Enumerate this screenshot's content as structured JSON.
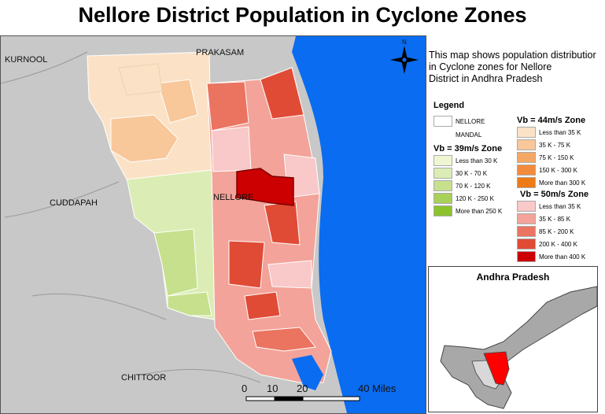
{
  "title": "Nellore District Population in Cyclone Zones",
  "description": [
    "This map shows population distributior",
    "in Cyclone zones for Nellore",
    "District in Andhra Pradesh"
  ],
  "map_labels": {
    "kurnool": "KURNOOL",
    "prakasam": "PRAKASAM",
    "cuddapah": "CUDDAPAH",
    "nellore": "NELLORE",
    "chittoor": "CHITTOOR",
    "north_arrow": "N"
  },
  "scale_bar": {
    "ticks": [
      "0",
      "10",
      "20",
      "40 Miles"
    ]
  },
  "legend": {
    "heading": "Legend",
    "boundary_items": [
      "NELLORE",
      "MANDAL"
    ],
    "zones": [
      {
        "title": "Vb = 39m/s Zone",
        "items": [
          {
            "label": "Less than 30 K",
            "color": "#eef7d2"
          },
          {
            "label": "30 K - 70 K",
            "color": "#dbedb4"
          },
          {
            "label": "70 K - 120 K",
            "color": "#c6e08d"
          },
          {
            "label": "120 K - 250 K",
            "color": "#a8d15a"
          },
          {
            "label": "More than 250 K",
            "color": "#8cc22e"
          }
        ]
      },
      {
        "title": "Vb = 44m/s Zone",
        "items": [
          {
            "label": "Less than 35 K",
            "color": "#fbe2c6"
          },
          {
            "label": "35 K - 75 K",
            "color": "#f8c79a"
          },
          {
            "label": "75 K - 150 K",
            "color": "#f5a866"
          },
          {
            "label": "150 K - 300 K",
            "color": "#f28c3c"
          },
          {
            "label": "More than 300 K",
            "color": "#ee7a16"
          }
        ]
      },
      {
        "title": "Vb = 50m/s Zone",
        "items": [
          {
            "label": "Less than 35 K",
            "color": "#f9c8c8"
          },
          {
            "label": "35 K - 85 K",
            "color": "#f3a399"
          },
          {
            "label": "85 K - 200 K",
            "color": "#ea7460"
          },
          {
            "label": "200 K - 400 K",
            "color": "#e04b36"
          },
          {
            "label": "More than 400 K",
            "color": "#cc0000"
          }
        ]
      }
    ]
  },
  "inset": {
    "title": "Andhra Pradesh"
  },
  "colors": {
    "sea": "#0a6cf0",
    "background": "#c8c8c8",
    "highlight": "#ff0000"
  }
}
